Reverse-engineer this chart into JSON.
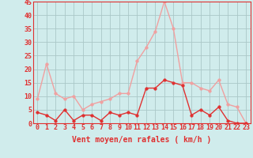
{
  "xlabel": "Vent moyen/en rafales ( km/h )",
  "hours": [
    0,
    1,
    2,
    3,
    4,
    5,
    6,
    7,
    8,
    9,
    10,
    11,
    12,
    13,
    14,
    15,
    16,
    17,
    18,
    19,
    20,
    21,
    22,
    23
  ],
  "vent_moyen": [
    4,
    3,
    1,
    5,
    1,
    3,
    3,
    1,
    4,
    3,
    4,
    3,
    13,
    13,
    16,
    15,
    14,
    3,
    5,
    3,
    6,
    1,
    0,
    0
  ],
  "vent_rafales": [
    9,
    22,
    11,
    9,
    10,
    5,
    7,
    8,
    9,
    11,
    11,
    23,
    28,
    34,
    45,
    35,
    15,
    15,
    13,
    12,
    16,
    7,
    6,
    0
  ],
  "color_moyen": "#e03030",
  "color_rafales": "#f0a0a0",
  "bg_color": "#d0ecec",
  "grid_color": "#aac8c8",
  "ylim": [
    0,
    45
  ],
  "yticks": [
    0,
    5,
    10,
    15,
    20,
    25,
    30,
    35,
    40,
    45
  ],
  "tick_fontsize": 6,
  "xlabel_fontsize": 7,
  "marker_size": 2.5,
  "linewidth": 1.0
}
